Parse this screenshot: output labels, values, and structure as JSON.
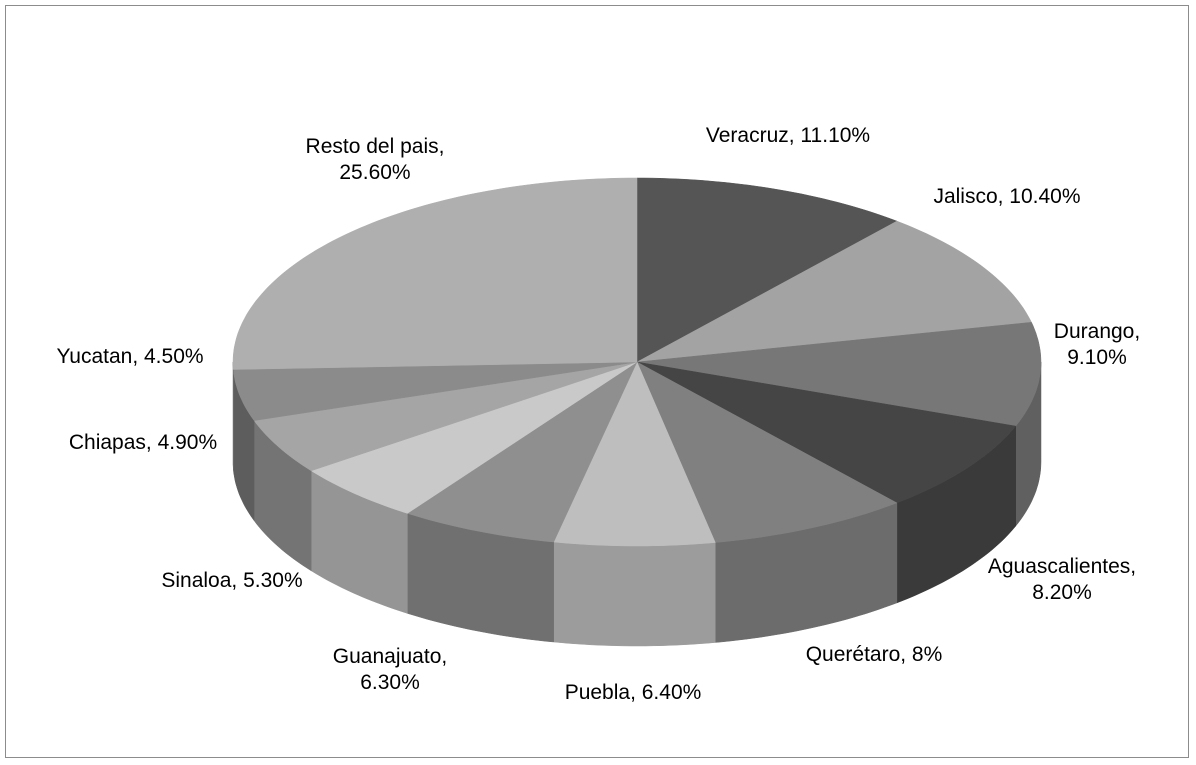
{
  "chart_data": {
    "type": "pie3d",
    "values": [
      11.1,
      10.4,
      9.1,
      8.2,
      8,
      6.4,
      6.3,
      5.3,
      4.9,
      4.5,
      25.6
    ],
    "value_labels": [
      "Veracruz, 11.10%",
      "Jalisco, 10.40%",
      "Durango, 9.10%",
      "Aguascalientes, 8.20%",
      "Querétaro, 8%",
      "Puebla, 6.40%",
      "Guanajuato, 6.30%",
      "Sinaloa, 5.30%",
      "Chiapas, 4.90%",
      "Yucatan, 4.50%",
      "Resto del pais, 25.60%"
    ],
    "colors": [
      "#555555",
      "#a3a3a3",
      "#777777",
      "#454545",
      "#808080",
      "#bebebe",
      "#8f8f8f",
      "#c9c9c9",
      "#a5a5a5",
      "#8b8b8b",
      "#afafaf"
    ]
  }
}
